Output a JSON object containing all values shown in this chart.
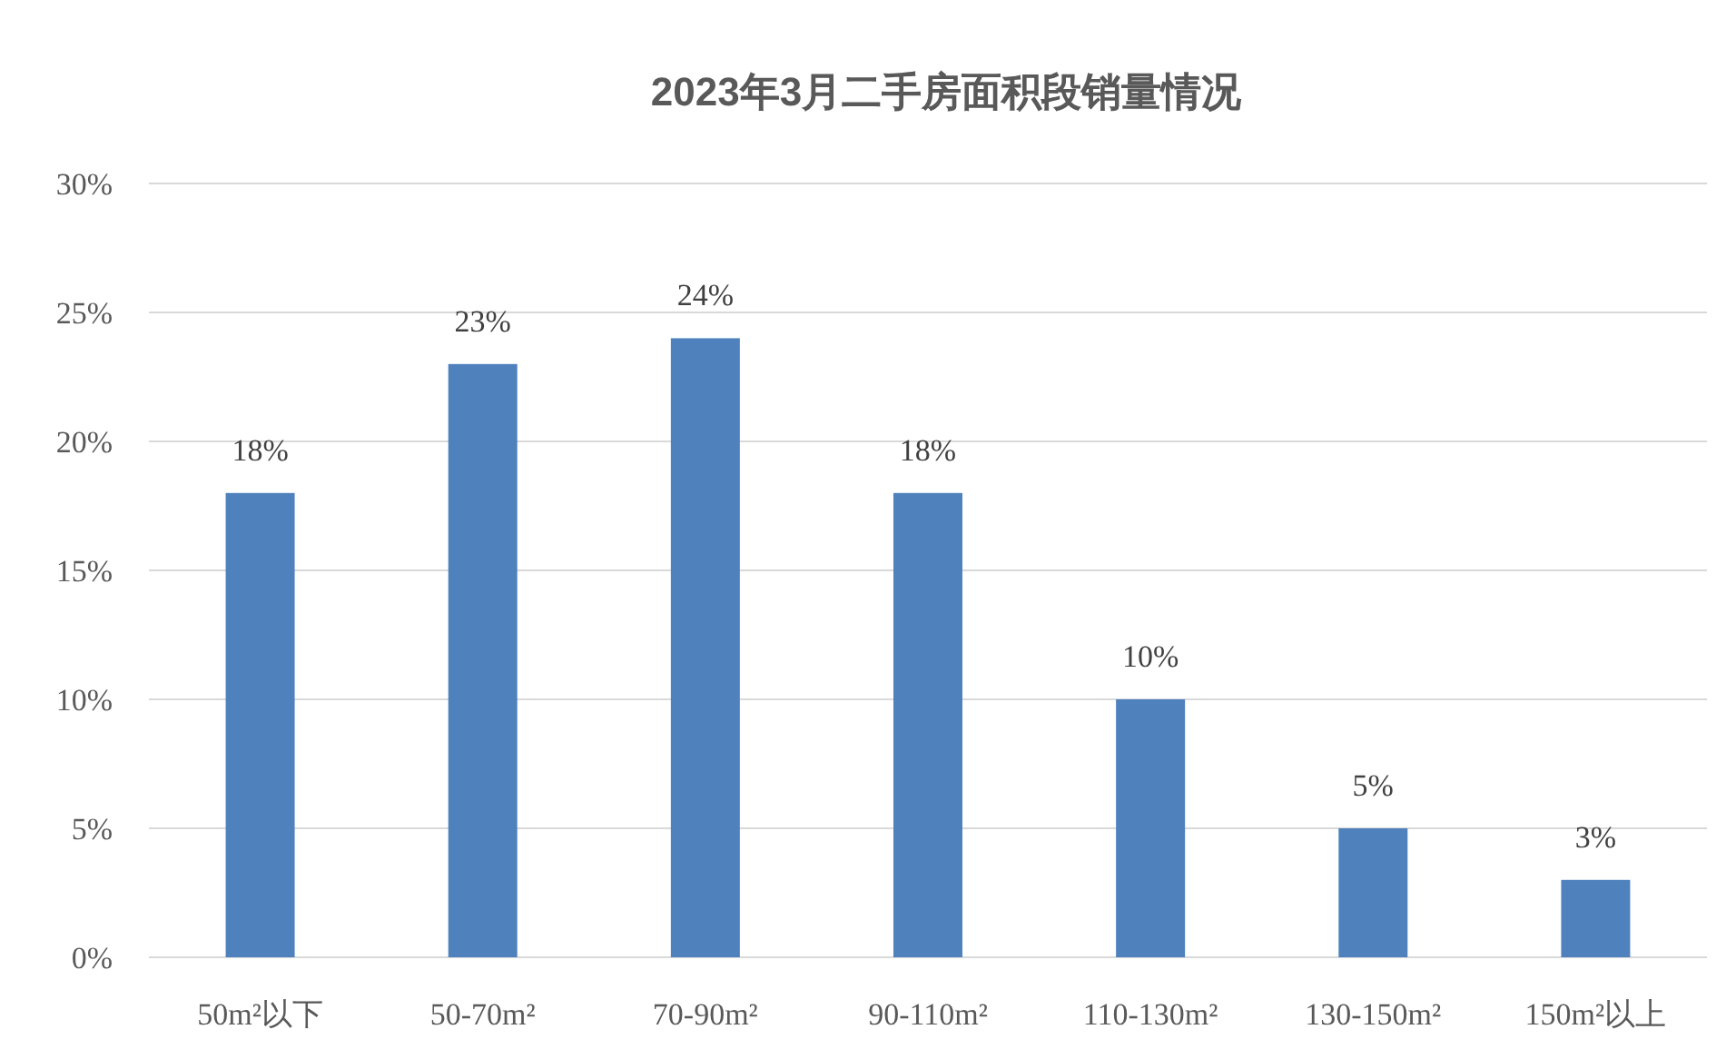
{
  "chart_data": {
    "type": "bar",
    "title": "2023年3月二手房面积段销量情况",
    "categories": [
      "50m²以下",
      "50-70m²",
      "70-90m²",
      "90-110m²",
      "110-130m²",
      "130-150m²",
      "150m²以上"
    ],
    "values": [
      18,
      23,
      24,
      18,
      10,
      5,
      3
    ],
    "value_labels": [
      "18%",
      "23%",
      "24%",
      "18%",
      "10%",
      "5%",
      "3%"
    ],
    "color": "#4f81bd",
    "ylim": [
      0,
      30
    ],
    "yticks": [
      {
        "value": 0,
        "label": "0%"
      },
      {
        "value": 5,
        "label": "5%"
      },
      {
        "value": 10,
        "label": "10%"
      },
      {
        "value": 15,
        "label": "15%"
      },
      {
        "value": 20,
        "label": "20%"
      },
      {
        "value": 25,
        "label": "25%"
      },
      {
        "value": 30,
        "label": "30%"
      }
    ],
    "grid": "y"
  }
}
